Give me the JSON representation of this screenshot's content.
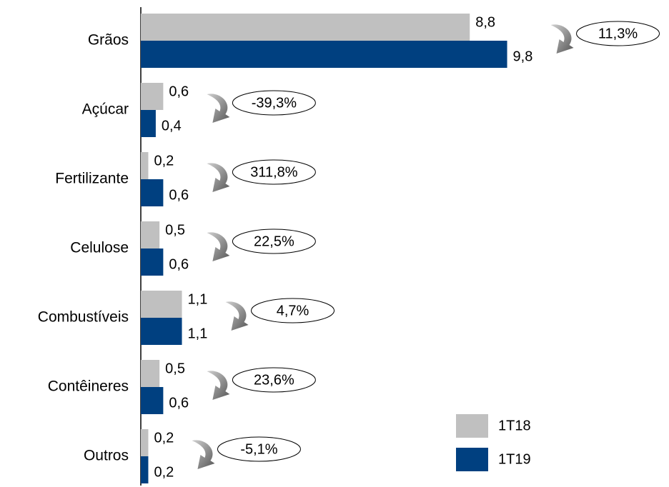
{
  "chart_data": {
    "type": "bar",
    "orientation": "horizontal",
    "categories": [
      "Grãos",
      "Açúcar",
      "Fertilizante",
      "Celulose",
      "Combustíveis",
      "Contêineres",
      "Outros"
    ],
    "series": [
      {
        "name": "1T18",
        "color": "#c0c0c0",
        "values": [
          8.8,
          0.6,
          0.2,
          0.5,
          1.1,
          0.5,
          0.2
        ],
        "value_labels": [
          "8,8",
          "0,6",
          "0,2",
          "0,5",
          "1,1",
          "0,5",
          "0,2"
        ]
      },
      {
        "name": "1T19",
        "color": "#004080",
        "values": [
          9.8,
          0.4,
          0.6,
          0.6,
          1.1,
          0.6,
          0.2
        ],
        "value_labels": [
          "9,8",
          "0,4",
          "0,6",
          "0,6",
          "1,1",
          "0,6",
          "0,2"
        ]
      }
    ],
    "annotations": [
      "11,3%",
      "-39,3%",
      "311,8%",
      "22,5%",
      "4,7%",
      "23,6%",
      "-5,1%"
    ],
    "xlim": [
      0,
      10
    ],
    "legend": "bottom-right"
  }
}
